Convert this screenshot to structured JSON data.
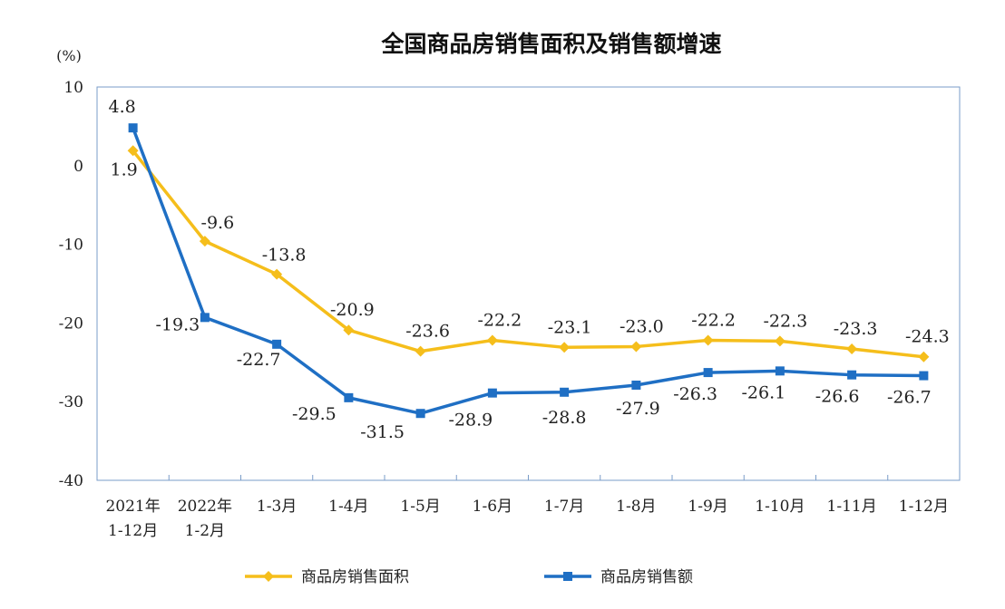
{
  "chart_data": {
    "type": "line",
    "title": "全国商品房销售面积及销售额增速",
    "ylabel": "(%)",
    "xlabel": "",
    "ylim": [
      -40,
      10
    ],
    "yticks": [
      10,
      0,
      -10,
      -20,
      -30,
      -40
    ],
    "categories": [
      [
        "2021年",
        "1-12月"
      ],
      [
        "2022年",
        "1-2月"
      ],
      [
        "1-3月"
      ],
      [
        "1-4月"
      ],
      [
        "1-5月"
      ],
      [
        "1-6月"
      ],
      [
        "1-7月"
      ],
      [
        "1-8月"
      ],
      [
        "1-9月"
      ],
      [
        "1-10月"
      ],
      [
        "1-11月"
      ],
      [
        "1-12月"
      ]
    ],
    "series": [
      {
        "name": "商品房销售面积",
        "color": "#F5BE1B",
        "marker": "diamond",
        "values": [
          1.9,
          -9.6,
          -13.8,
          -20.9,
          -23.6,
          -22.2,
          -23.1,
          -23.0,
          -22.2,
          -22.3,
          -23.3,
          -24.3
        ],
        "labels": [
          "1.9",
          "-9.6",
          "-13.8",
          "-20.9",
          "-23.6",
          "-22.2",
          "-23.1",
          "-23.0",
          "-22.2",
          "-22.3",
          "-23.3",
          "-24.3"
        ]
      },
      {
        "name": "商品房销售额",
        "color": "#1F6FC4",
        "marker": "square",
        "values": [
          4.8,
          -19.3,
          -22.7,
          -29.5,
          -31.5,
          -28.9,
          -28.8,
          -27.9,
          -26.3,
          -26.1,
          -26.6,
          -26.7
        ],
        "labels": [
          "4.8",
          "-19.3",
          "-22.7",
          "-29.5",
          "-31.5",
          "-28.9",
          "-28.8",
          "-27.9",
          "-26.3",
          "-26.1",
          "-26.6",
          "-26.7"
        ]
      }
    ],
    "legend_position": "bottom-center",
    "grid": false
  }
}
